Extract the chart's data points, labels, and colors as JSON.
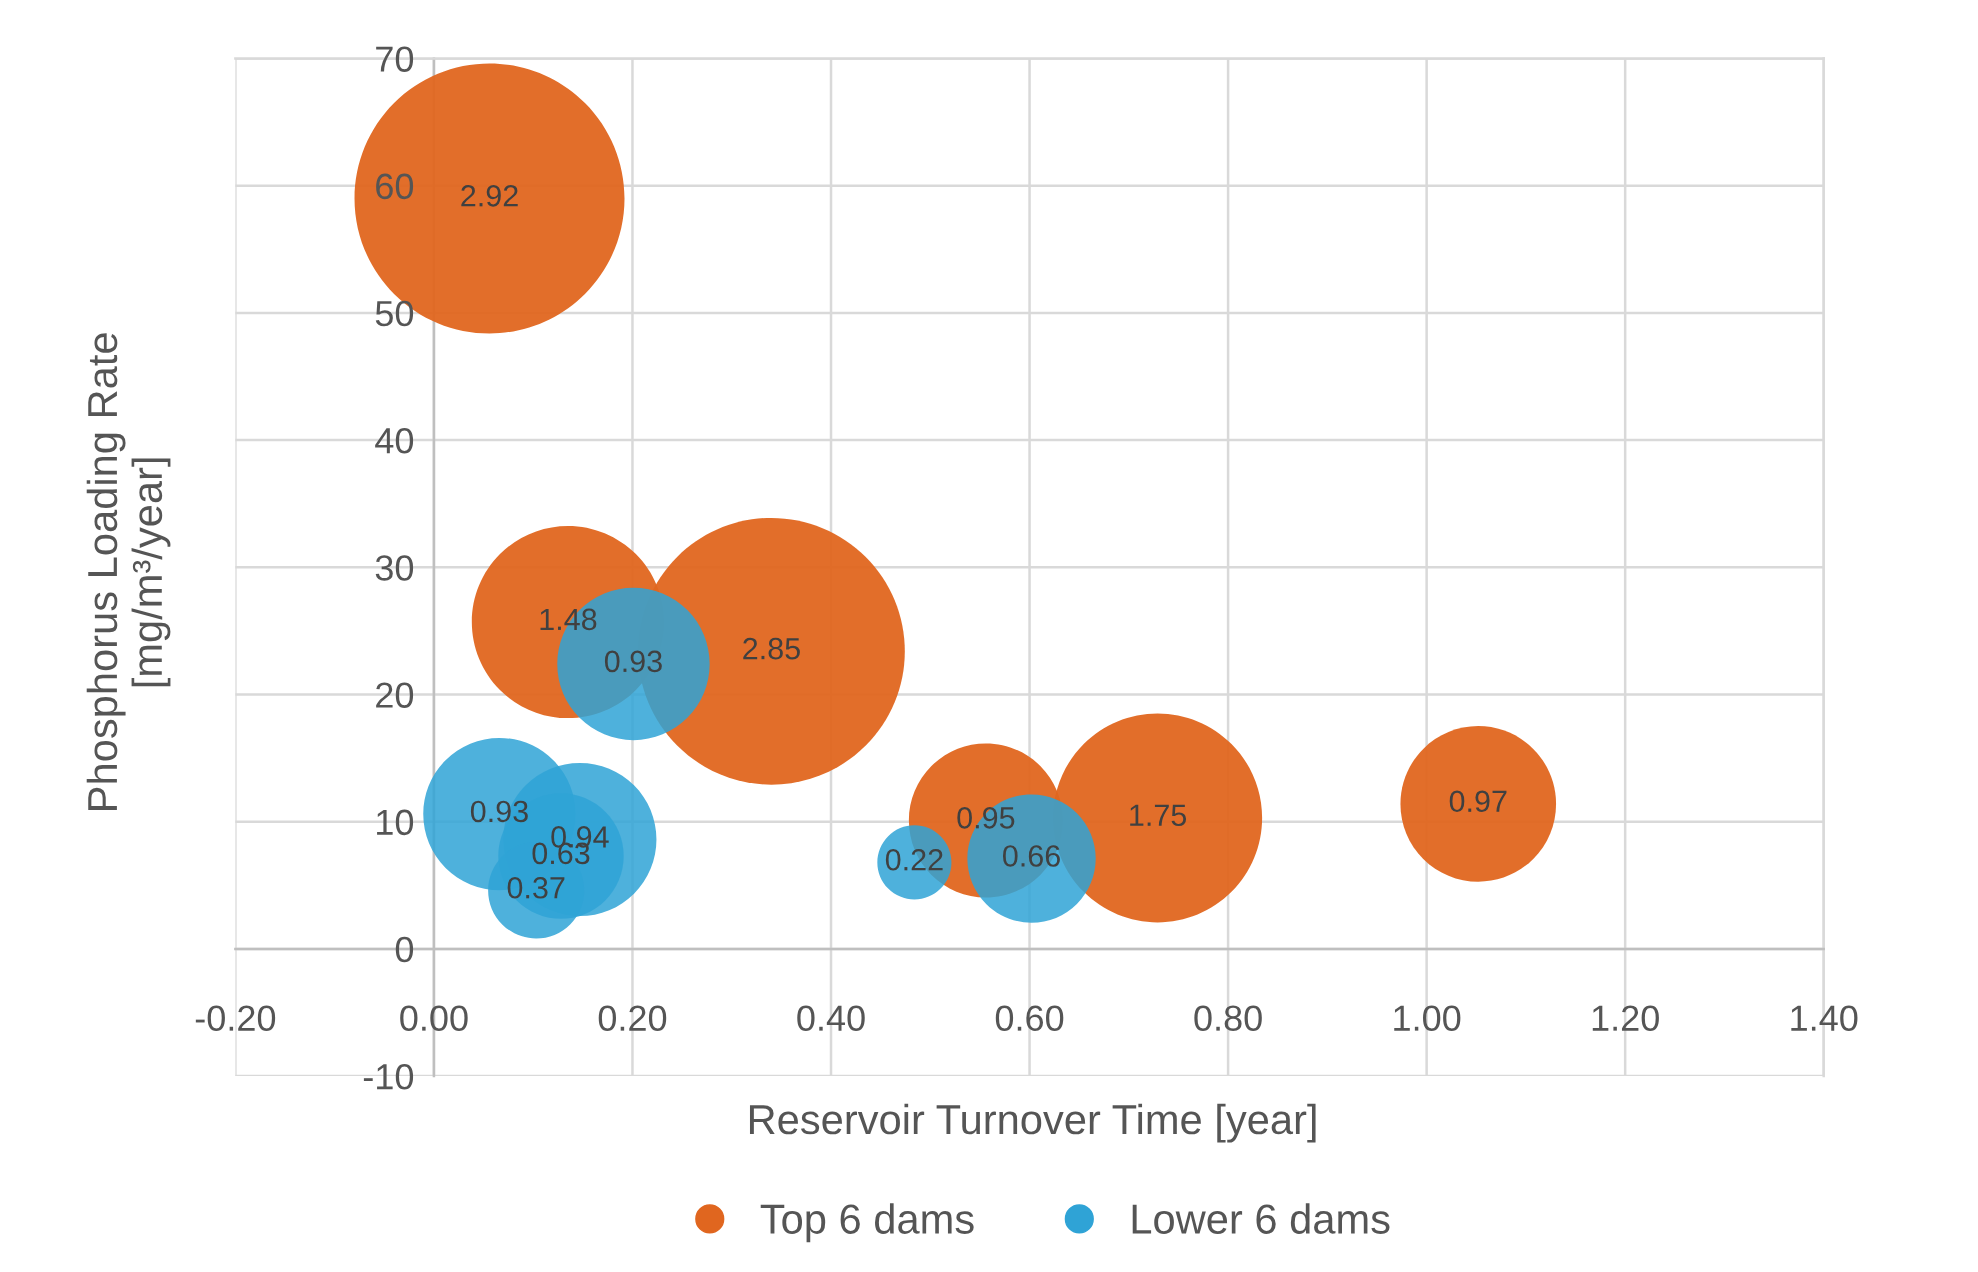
{
  "chart_data": {
    "type": "bubble",
    "xlabel": "Reservoir Turnover Time [year]",
    "ylabel": "Phosphorus Loading Rate\n[mg/m³/year]",
    "series": [
      {
        "name": "Top 6 dams",
        "color": "#e0661f",
        "x": [
          0.056,
          0.135,
          0.34,
          0.556,
          0.729,
          1.052
        ],
        "values": [
          59.0,
          25.7,
          23.4,
          10.1,
          10.3,
          11.4
        ],
        "sizes": [
          2.92,
          1.48,
          2.85,
          0.95,
          1.75,
          0.97
        ],
        "value_labels": [
          "2.92",
          "1.48",
          "2.85",
          "0.95",
          "1.75",
          "0.97"
        ]
      },
      {
        "name": "Lower 6 dams",
        "color": "#2fa3d6",
        "x": [
          0.201,
          0.066,
          0.147,
          0.128,
          0.103,
          0.484,
          0.602
        ],
        "values": [
          22.4,
          10.6,
          8.6,
          7.3,
          4.6,
          6.8,
          7.1
        ],
        "sizes": [
          0.93,
          0.93,
          0.94,
          0.63,
          0.37,
          0.22,
          0.66
        ],
        "value_labels": [
          "0.93",
          "0.93",
          "0.94",
          "0.63",
          "0.37",
          "0.22",
          "0.66"
        ]
      }
    ],
    "xlim": [
      -0.2,
      1.4
    ],
    "xticks": [
      {
        "value": -0.2,
        "label": "-0.20"
      },
      {
        "value": 0,
        "label": "0.00"
      },
      {
        "value": 0.2,
        "label": "0.20"
      },
      {
        "value": 0.4,
        "label": "0.40"
      },
      {
        "value": 0.6,
        "label": "0.60"
      },
      {
        "value": 0.8,
        "label": "0.80"
      },
      {
        "value": 1.0,
        "label": "1.00"
      },
      {
        "value": 1.2,
        "label": "1.20"
      },
      {
        "value": 1.4,
        "label": "1.40"
      }
    ],
    "ylim": [
      -10,
      70
    ],
    "yticks": [
      -10,
      0,
      10,
      20,
      30,
      40,
      50,
      60,
      70
    ],
    "grid": true,
    "legend": "bottom"
  }
}
